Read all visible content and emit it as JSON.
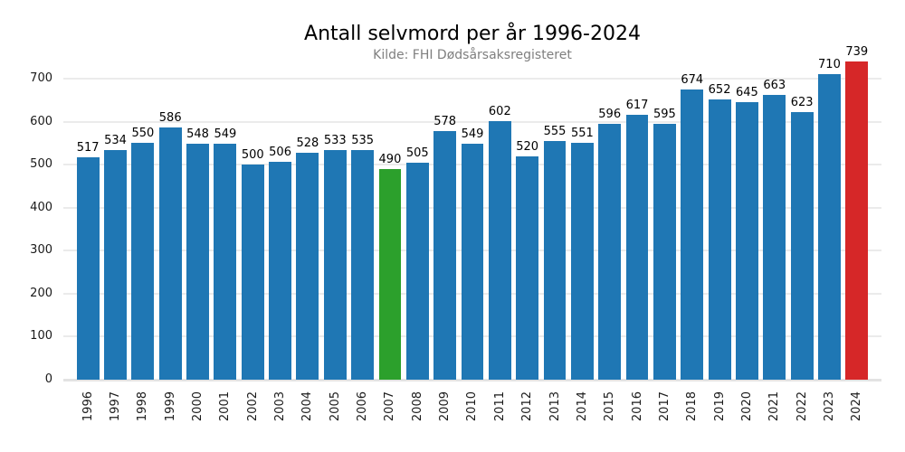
{
  "chart_data": {
    "type": "bar",
    "title": "Antall selvmord per år 1996-2024",
    "subtitle": "Kilde: FHI Dødsårsaksregisteret",
    "categories": [
      "1996",
      "1997",
      "1998",
      "1999",
      "2000",
      "2001",
      "2002",
      "2003",
      "2004",
      "2005",
      "2006",
      "2007",
      "2008",
      "2009",
      "2010",
      "2011",
      "2012",
      "2013",
      "2014",
      "2015",
      "2016",
      "2017",
      "2018",
      "2019",
      "2020",
      "2021",
      "2022",
      "2023",
      "2024"
    ],
    "values": [
      517,
      534,
      550,
      586,
      548,
      549,
      500,
      506,
      528,
      533,
      535,
      490,
      505,
      578,
      549,
      602,
      520,
      555,
      551,
      596,
      617,
      595,
      674,
      652,
      645,
      663,
      623,
      710,
      739
    ],
    "value_labels_shown": true,
    "xlabel": "",
    "ylabel": "",
    "ylim": [
      0,
      745
    ],
    "yticks": [
      0,
      100,
      200,
      300,
      400,
      500,
      600,
      700
    ],
    "grid": "horizontal",
    "legend": "none",
    "default_bar_color": "#1f77b4",
    "highlight_colors": {
      "2007": "#2ca02c",
      "2024": "#d62728"
    },
    "tick_label_color": "#1a1a1a",
    "subtitle_color": "#7f7f7f",
    "gridline_color": "#ebebeb"
  }
}
